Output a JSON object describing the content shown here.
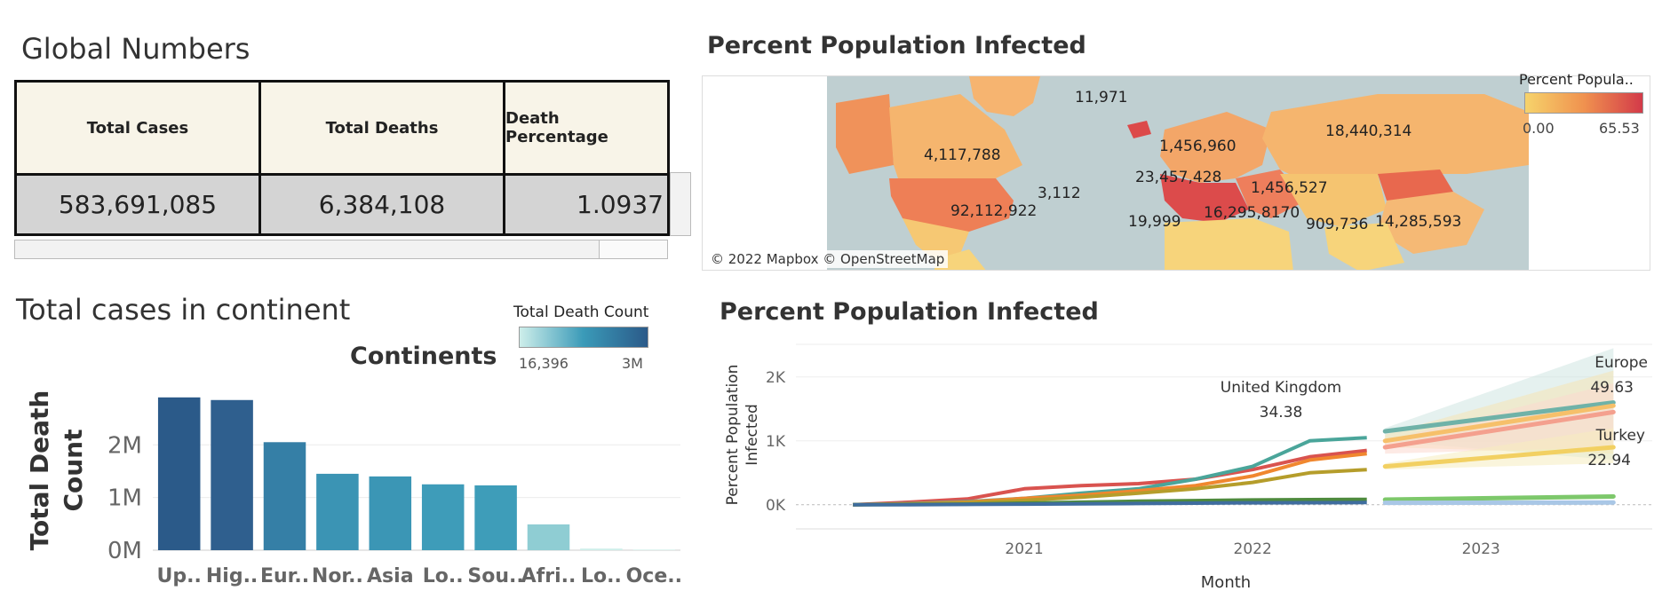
{
  "global_numbers": {
    "title": "Global Numbers",
    "headers": [
      "Total Cases",
      "Total Deaths",
      "Death Percentage"
    ],
    "values": [
      "583,691,085",
      "6,384,108",
      "1.0937"
    ]
  },
  "map": {
    "title": "Percent Population Infected",
    "legend_title": "Percent Popula..",
    "legend_min": "0.00",
    "legend_max": "65.53",
    "legend_colors": [
      "#f6d36b",
      "#f0924f",
      "#d33a49"
    ],
    "attribution": "© 2022 Mapbox © OpenStreetMap",
    "labels": [
      "11,971",
      "4,117,788",
      "1,456,960",
      "18,440,314",
      "23,457,428",
      "3,112",
      "92,112,922",
      "1,456,527",
      "19,999",
      "16,295,8170",
      "909,736",
      "14,285,593"
    ]
  },
  "bar_chart": {
    "title": "Total cases in continent",
    "legend_title": "Total Death Count",
    "legend_min": "16,396",
    "legend_max": "3M",
    "legend_colors": [
      "#cdeeea",
      "#3a9ab8",
      "#2b5a89"
    ],
    "x_title": "Continents",
    "y_title": [
      "Total Death",
      "Count"
    ]
  },
  "line_chart": {
    "title": "Percent Population Infected",
    "y_title": [
      "Percent Population",
      "Infected"
    ],
    "x_title": "Month",
    "callouts": [
      {
        "name": "United Kingdom",
        "value": "34.38"
      },
      {
        "name": "Europe",
        "value": "49.63"
      },
      {
        "name": "Turkey",
        "value": "22.94"
      }
    ]
  },
  "chart_data": [
    {
      "type": "bar",
      "title": "Total cases in continent",
      "xlabel": "Continents",
      "ylabel": "Total Death Count",
      "categories": [
        "Up..",
        "Hig..",
        "Eur..",
        "Nor..",
        "Asia",
        "Lo..",
        "Sou..",
        "Afri..",
        "Lo..",
        "Oce.."
      ],
      "values": [
        2900000,
        2850000,
        2050000,
        1450000,
        1400000,
        1250000,
        1230000,
        490000,
        30000,
        16396
      ],
      "colors": [
        "#2b5a89",
        "#2f5f8e",
        "#357fa6",
        "#3b94b4",
        "#3b96b5",
        "#3e9cb9",
        "#3e9db9",
        "#8fcdd3",
        "#cdeeea",
        "#dff4f1"
      ],
      "yticks": [
        {
          "value": 0,
          "label": "0M"
        },
        {
          "value": 1000000,
          "label": "1M"
        },
        {
          "value": 2000000,
          "label": "2M"
        }
      ],
      "ylim": [
        0,
        3200000
      ],
      "grid": true,
      "legend": "top-right"
    },
    {
      "type": "line",
      "title": "Percent Population Infected",
      "xlabel": "Month",
      "ylabel": "Percent Population Infected",
      "xticks": [
        "2021",
        "2022",
        "2023"
      ],
      "yticks": [
        {
          "value": 0,
          "label": "0K"
        },
        {
          "value": 1000,
          "label": "1K"
        },
        {
          "value": 2000,
          "label": "2K"
        }
      ],
      "xlim": [
        2020.0,
        2023.75
      ],
      "ylim": [
        -100,
        2400
      ],
      "historical_x": [
        2020.25,
        2020.5,
        2020.75,
        2021.0,
        2021.25,
        2021.5,
        2021.75,
        2022.0,
        2022.25,
        2022.5
      ],
      "series": [
        {
          "color": "#d9534f",
          "values": [
            0,
            40,
            90,
            250,
            300,
            330,
            400,
            550,
            750,
            850
          ]
        },
        {
          "color": "#4aa59a",
          "values": [
            0,
            20,
            50,
            100,
            180,
            250,
            400,
            600,
            1000,
            1050
          ]
        },
        {
          "color": "#f0872f",
          "values": [
            0,
            15,
            40,
            100,
            150,
            220,
            300,
            450,
            700,
            800
          ]
        },
        {
          "color": "#b59d2b",
          "values": [
            0,
            10,
            30,
            70,
            120,
            180,
            250,
            350,
            500,
            550
          ]
        },
        {
          "color": "#4e8a3e",
          "values": [
            0,
            5,
            10,
            25,
            40,
            55,
            65,
            75,
            80,
            85
          ]
        },
        {
          "color": "#3f6d9e",
          "values": [
            0,
            2,
            5,
            10,
            15,
            20,
            25,
            30,
            32,
            35
          ]
        }
      ],
      "forecast_x": [
        2022.58,
        2023.58
      ],
      "forecast": [
        {
          "color": "#6fb2a8",
          "band": "#cfe6e2",
          "values": [
            1150,
            1600
          ],
          "band_low": [
            1000,
            700
          ],
          "band_high": [
            1200,
            2450
          ]
        },
        {
          "color": "#f6c06a",
          "band": "#f6e3b5",
          "values": [
            1000,
            1550
          ],
          "band_low": [
            900,
            800
          ],
          "band_high": [
            1100,
            2100
          ]
        },
        {
          "color": "#f4a08e",
          "band": "#fbd9d0",
          "values": [
            900,
            1450
          ],
          "band_low": [
            800,
            900
          ],
          "band_high": [
            1000,
            1900
          ]
        },
        {
          "color": "#f2d062",
          "band": "#f6ecc0",
          "values": [
            600,
            900
          ],
          "band_low": [
            550,
            650
          ],
          "band_high": [
            650,
            1200
          ]
        },
        {
          "color": "#7dc86b",
          "band": "#e0f0d6",
          "values": [
            80,
            130
          ],
          "band_low": [
            70,
            100
          ],
          "band_high": [
            90,
            160
          ]
        },
        {
          "color": "#a9c7e6",
          "band": "#e3eef8",
          "values": [
            30,
            35
          ],
          "band_low": [
            25,
            28
          ],
          "band_high": [
            35,
            45
          ]
        }
      ]
    }
  ]
}
